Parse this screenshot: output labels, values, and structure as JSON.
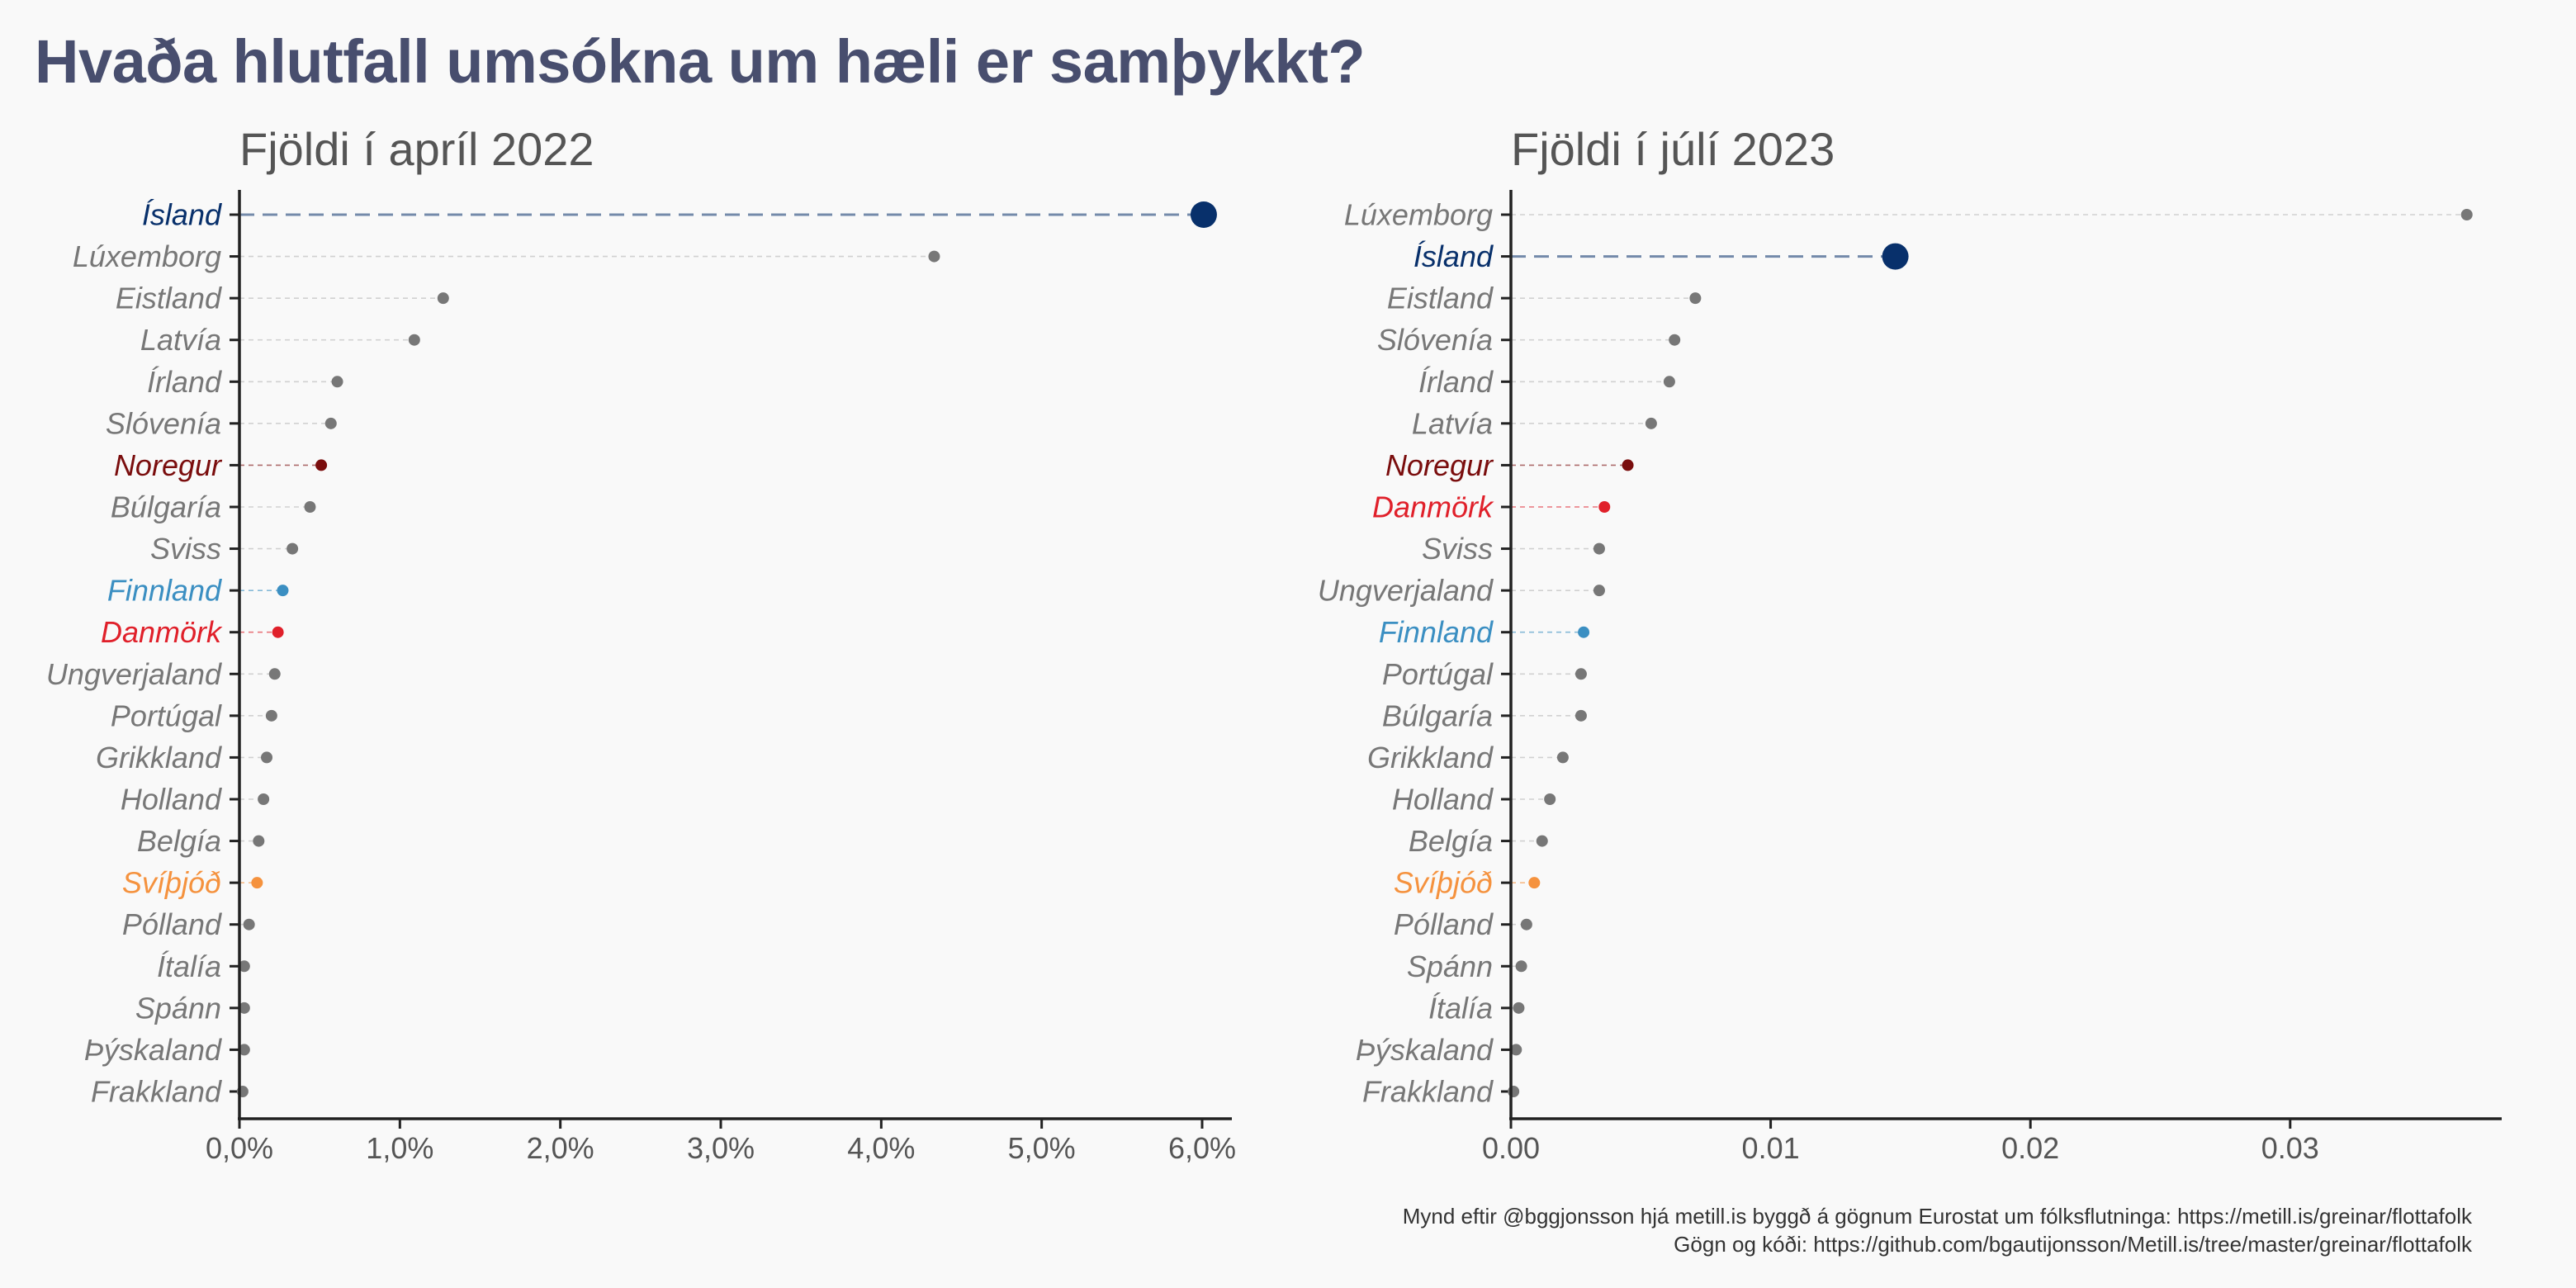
{
  "title": "Hvaða hlutfall umsókna um hæli er samþykkt?",
  "caption": {
    "line1": "Mynd eftir @bggjonsson hjá metill.is byggð á gögnum Eurostat um fólksflutninga: https://metill.is/greinar/flottafolk",
    "line2": "Gögn og kóði: https://github.com/bgautijonsson/Metill.is/tree/master/greinar/flottafolk"
  },
  "chart_data": [
    {
      "type": "dot",
      "subtitle": "Fjöldi í apríl 2022",
      "xlim": [
        0,
        0.06
      ],
      "xticks": [
        0,
        0.01,
        0.02,
        0.03,
        0.04,
        0.05,
        0.06
      ],
      "xtick_labels": [
        "0,0%",
        "1,0%",
        "2,0%",
        "3,0%",
        "4,0%",
        "5,0%",
        "6,0%"
      ],
      "categories": [
        "Ísland",
        "Lúxemborg",
        "Eistland",
        "Latvía",
        "Írland",
        "Slóvenía",
        "Noregur",
        "Búlgaría",
        "Sviss",
        "Finnland",
        "Danmörk",
        "Ungverjaland",
        "Portúgal",
        "Grikkland",
        "Holland",
        "Belgía",
        "Svíþjóð",
        "Pólland",
        "Ítalía",
        "Spánn",
        "Þýskaland",
        "Frakkland"
      ],
      "values": [
        0.0601,
        0.0433,
        0.0127,
        0.0109,
        0.0061,
        0.0057,
        0.0051,
        0.0044,
        0.0033,
        0.0027,
        0.0024,
        0.0022,
        0.002,
        0.0017,
        0.0015,
        0.0012,
        0.0011,
        0.0006,
        0.0003,
        0.0003,
        0.0003,
        0.0002
      ]
    },
    {
      "type": "dot",
      "subtitle": "Fjöldi í júlí 2023",
      "xlim": [
        0,
        0.037
      ],
      "xticks": [
        0,
        0.01,
        0.02,
        0.03
      ],
      "xtick_labels": [
        "0.00",
        "0.01",
        "0.02",
        "0.03"
      ],
      "categories": [
        "Lúxemborg",
        "Ísland",
        "Eistland",
        "Slóvenía",
        "Írland",
        "Latvía",
        "Noregur",
        "Danmörk",
        "Sviss",
        "Ungverjaland",
        "Finnland",
        "Portúgal",
        "Búlgaría",
        "Grikkland",
        "Holland",
        "Belgía",
        "Svíþjóð",
        "Pólland",
        "Spánn",
        "Ítalía",
        "Þýskaland",
        "Frakkland"
      ],
      "values": [
        0.0368,
        0.0148,
        0.0071,
        0.0063,
        0.0061,
        0.0054,
        0.0045,
        0.0036,
        0.0034,
        0.0034,
        0.0028,
        0.0027,
        0.0027,
        0.002,
        0.0015,
        0.0012,
        0.0009,
        0.0006,
        0.0004,
        0.0003,
        0.0002,
        0.0001
      ]
    }
  ],
  "highlight_colors": {
    "Ísland": "#08306b",
    "Noregur": "#7a0d0d",
    "Danmörk": "#e0202a",
    "Finnland": "#3b8fc2",
    "Svíþjóð": "#f5923e"
  },
  "default_color": "#777777"
}
